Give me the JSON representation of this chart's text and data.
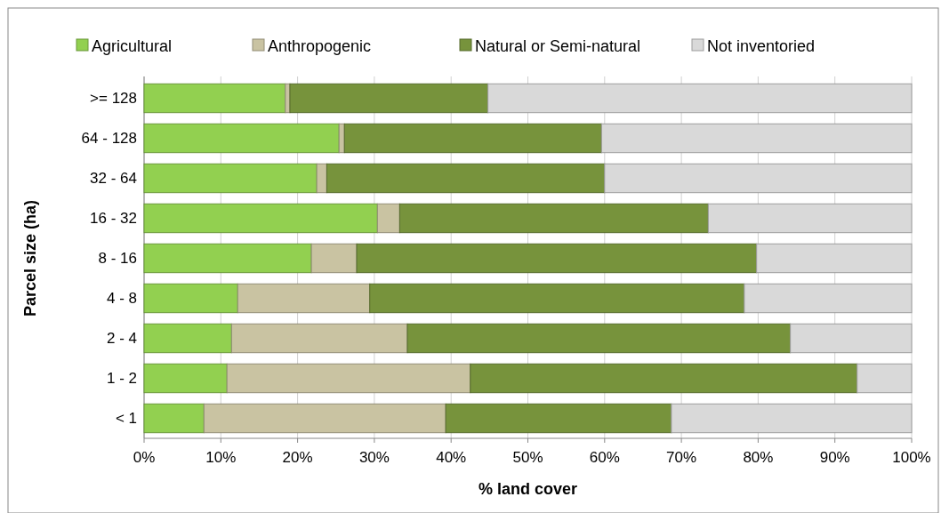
{
  "chart_data": {
    "type": "bar",
    "orientation": "horizontal",
    "stacked": true,
    "ylabel": "Parcel size (ha)",
    "xlabel": "% land cover",
    "categories": [
      ">= 128",
      "64 - 128",
      "32 - 64",
      "16 - 32",
      "8 - 16",
      "4 - 8",
      "2 - 4",
      "1 - 2",
      "< 1"
    ],
    "series": [
      {
        "name": "Agricultural",
        "color": "#92d050",
        "values": [
          18.4,
          25.4,
          22.5,
          30.4,
          21.8,
          12.2,
          11.4,
          10.8,
          7.8
        ]
      },
      {
        "name": "Anthropogenic",
        "color": "#c9c3a2",
        "values": [
          0.6,
          0.7,
          1.3,
          2.9,
          5.9,
          17.2,
          22.9,
          31.7,
          31.5
        ]
      },
      {
        "name": "Natural or Semi-natural",
        "color": "#77933c",
        "values": [
          25.8,
          33.5,
          36.2,
          40.2,
          52.1,
          48.8,
          49.9,
          50.4,
          29.4
        ]
      },
      {
        "name": "Not inventoried",
        "color": "#d9d9d9",
        "values": [
          55.2,
          40.4,
          40.0,
          26.5,
          20.2,
          21.8,
          15.8,
          7.1,
          31.3
        ]
      }
    ],
    "xlim": [
      0,
      100
    ],
    "xticks": [
      {
        "value": 0,
        "label": "0%"
      },
      {
        "value": 10,
        "label": "10%"
      },
      {
        "value": 20,
        "label": "20%"
      },
      {
        "value": 30,
        "label": "30%"
      },
      {
        "value": 40,
        "label": "40%"
      },
      {
        "value": 50,
        "label": "50%"
      },
      {
        "value": 60,
        "label": "60%"
      },
      {
        "value": 70,
        "label": "70%"
      },
      {
        "value": 80,
        "label": "80%"
      },
      {
        "value": 90,
        "label": "90%"
      },
      {
        "value": 100,
        "label": "100%"
      }
    ],
    "grid": "x",
    "legend": "top"
  }
}
